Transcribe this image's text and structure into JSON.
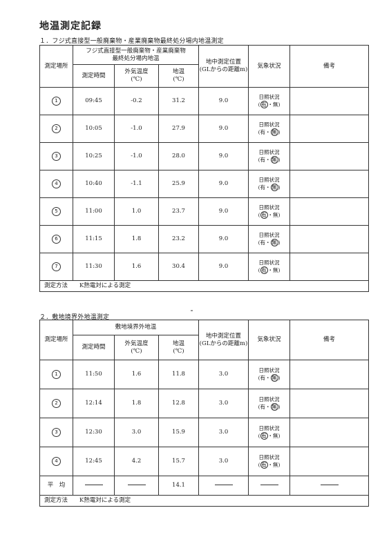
{
  "title": "地温測定記録",
  "section1": {
    "heading": "１．フジ式直接型一般廃棄物・産業廃棄物最終処分場内地温測定",
    "head_location": "測定場所",
    "head_group": "フジ式直接型一般廃棄物・産業廃棄物\n最終処分場内地温",
    "head_time": "測定時間",
    "head_outside": "外気温度\n(℃)",
    "head_ground": "地温\n(℃)",
    "head_depth": "地中測定位置\n(GLからの距離m)",
    "head_weather": "気象状況",
    "head_notes": "備考",
    "weather_label": "日照状況",
    "opt_yes": "有",
    "opt_sep": "・",
    "opt_no": "無",
    "rows": [
      {
        "loc": "1",
        "time": "09:45",
        "outside": "-0.2",
        "ground": "31.2",
        "depth": "9.0",
        "sun": "有"
      },
      {
        "loc": "2",
        "time": "10:05",
        "outside": "-1.0",
        "ground": "27.9",
        "depth": "9.0",
        "sun": "無"
      },
      {
        "loc": "3",
        "time": "10:25",
        "outside": "-1.0",
        "ground": "28.0",
        "depth": "9.0",
        "sun": "無"
      },
      {
        "loc": "4",
        "time": "10:40",
        "outside": "-1.1",
        "ground": "25.9",
        "depth": "9.0",
        "sun": "無"
      },
      {
        "loc": "5",
        "time": "11:00",
        "outside": "1.0",
        "ground": "23.7",
        "depth": "9.0",
        "sun": "有"
      },
      {
        "loc": "6",
        "time": "11:15",
        "outside": "1.8",
        "ground": "23.2",
        "depth": "9.0",
        "sun": "無"
      },
      {
        "loc": "7",
        "time": "11:30",
        "outside": "1.6",
        "ground": "30.4",
        "depth": "9.0",
        "sun": "有"
      }
    ],
    "method_label": "測定方法",
    "method_value": "K熱電対による測定"
  },
  "section2": {
    "heading": "２．敷地境界外地温測定",
    "head_location": "測定場所",
    "head_group": "敷地境界外地温",
    "head_time": "測定時間",
    "head_outside": "外気温度\n(℃)",
    "head_ground": "地温\n(℃)",
    "head_depth": "地中測定位置\n(GLからの距離m)",
    "head_weather": "気象状況",
    "head_notes": "備考",
    "weather_label": "日照状況",
    "opt_yes": "有",
    "opt_sep": "・",
    "opt_no": "無",
    "rows": [
      {
        "loc": "1",
        "time": "11:50",
        "outside": "1.6",
        "ground": "11.8",
        "depth": "3.0",
        "sun": "無"
      },
      {
        "loc": "2",
        "time": "12:14",
        "outside": "1.8",
        "ground": "12.8",
        "depth": "3.0",
        "sun": "無"
      },
      {
        "loc": "3",
        "time": "12:30",
        "outside": "3.0",
        "ground": "15.9",
        "depth": "3.0",
        "sun": "有"
      },
      {
        "loc": "4",
        "time": "12:45",
        "outside": "4.2",
        "ground": "15.7",
        "depth": "3.0",
        "sun": "有"
      }
    ],
    "avg_label": "平　均",
    "avg_ground": "14.1",
    "method_label": "測定方法",
    "method_value": "K熱電対による測定"
  }
}
